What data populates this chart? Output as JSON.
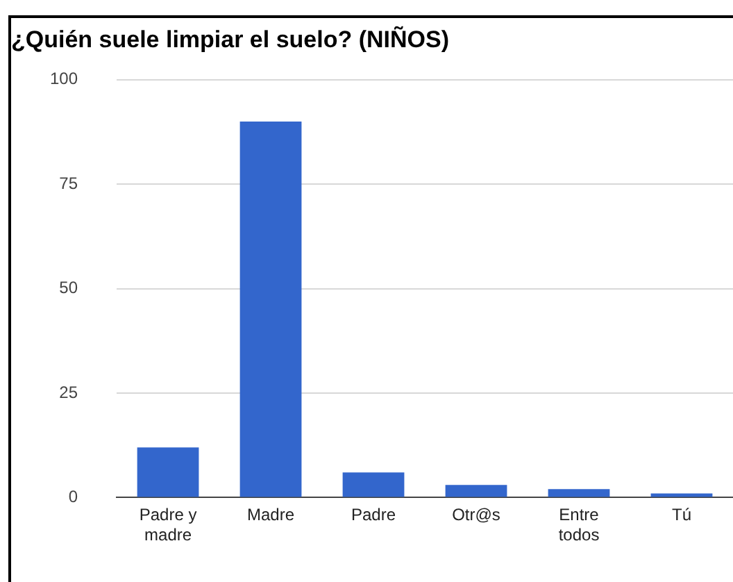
{
  "chart_data": {
    "type": "bar",
    "title": "¿Quién suele limpiar el suelo? (NIÑOS)",
    "categories": [
      "Padre y madre",
      "Madre",
      "Padre",
      "Otr@s",
      "Entre todos",
      "Tú"
    ],
    "values": [
      12,
      90,
      6,
      3,
      2,
      1
    ],
    "color": "#3366cc",
    "ylim": [
      0,
      100
    ],
    "yticks": [
      0,
      25,
      50,
      75,
      100
    ],
    "grid": "y",
    "legend": false
  }
}
